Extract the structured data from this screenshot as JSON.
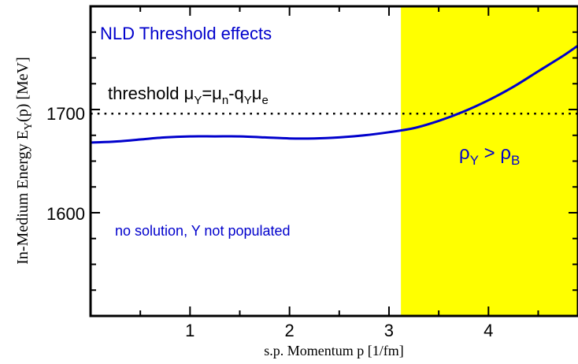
{
  "chart_data": {
    "type": "line",
    "title": "NLD Threshold effects",
    "xlabel": "s.p. Momentum p [1/fm]",
    "ylabel": "In-Medium Energy E_Y(p) [MeV]",
    "xlim": [
      0,
      4.9
    ],
    "ylim": [
      1500,
      1800
    ],
    "x_ticks": [
      1,
      2,
      3,
      4
    ],
    "x_tick_labels": [
      "1",
      "2",
      "3",
      "4"
    ],
    "y_ticks": [
      1600,
      1700
    ],
    "y_tick_labels": [
      "1600",
      "1700"
    ],
    "grid": false,
    "series": [
      {
        "color": "#0000cc",
        "style": "solid",
        "x": [
          0,
          0.25,
          0.5,
          0.75,
          1.0,
          1.25,
          1.5,
          1.75,
          2.0,
          2.25,
          2.5,
          2.75,
          3.0,
          3.25,
          3.5,
          3.75,
          4.0,
          4.25,
          4.5,
          4.75,
          4.9
        ],
        "y": [
          1668,
          1669,
          1671,
          1673,
          1674,
          1674,
          1674,
          1673,
          1672,
          1672,
          1673,
          1675,
          1678,
          1682,
          1689,
          1698,
          1709,
          1722,
          1737,
          1752,
          1762
        ]
      }
    ],
    "threshold": {
      "y": 1696,
      "color": "#000000",
      "style": "dotted"
    },
    "shaded_region": {
      "x_from": 3.12,
      "x_to": 4.9,
      "color": "#ffff00"
    },
    "annotations": {
      "threshold_label": "threshold",
      "rho_label": "ρ_Y > ρ_B",
      "no_solution_label": "no solution, Y not populated"
    },
    "colors": {
      "curve": "#0000cc",
      "region": "#ffff00",
      "axes": "#000000"
    }
  }
}
